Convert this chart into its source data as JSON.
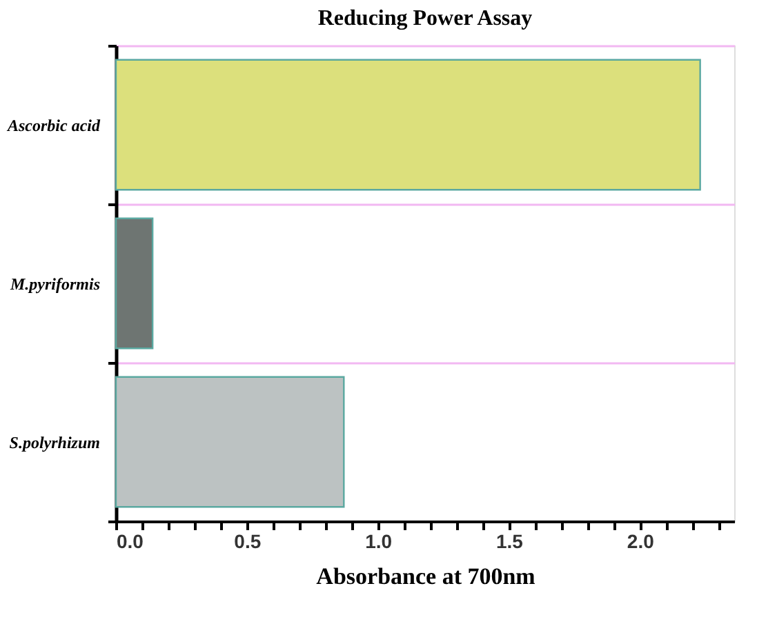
{
  "chart_data": {
    "type": "bar",
    "orientation": "horizontal",
    "title": "Reducing Power Assay",
    "xlabel": "Absorbance at 700nm",
    "categories": [
      "Ascorbic acid",
      "M.pyriformis",
      "S.polyrhizum"
    ],
    "values": [
      2.23,
      0.14,
      0.87
    ],
    "colors": [
      "#dce07c",
      "#6e7572",
      "#bcc2c2"
    ],
    "xlim": [
      0,
      2.36
    ],
    "xticks": [
      {
        "value": 0,
        "label": "0.0"
      },
      {
        "value": 0.1,
        "label": null
      },
      {
        "value": 0.2,
        "label": null
      },
      {
        "value": 0.3,
        "label": null
      },
      {
        "value": 0.4,
        "label": null
      },
      {
        "value": 0.5,
        "label": "0.5"
      },
      {
        "value": 0.6,
        "label": null
      },
      {
        "value": 0.7,
        "label": null
      },
      {
        "value": 0.8,
        "label": null
      },
      {
        "value": 0.9,
        "label": null
      },
      {
        "value": 1,
        "label": "1.0"
      },
      {
        "value": 1.1,
        "label": null
      },
      {
        "value": 1.2,
        "label": null
      },
      {
        "value": 1.3,
        "label": null
      },
      {
        "value": 1.4,
        "label": null
      },
      {
        "value": 1.5,
        "label": "1.5"
      },
      {
        "value": 1.6,
        "label": null
      },
      {
        "value": 1.7,
        "label": null
      },
      {
        "value": 1.8,
        "label": null
      },
      {
        "value": 1.9,
        "label": null
      },
      {
        "value": 2,
        "label": "2.0"
      },
      {
        "value": 2.1,
        "label": null
      },
      {
        "value": 2.2,
        "label": null
      },
      {
        "value": 2.3,
        "label": null
      }
    ],
    "grid": "y",
    "legend": false
  }
}
